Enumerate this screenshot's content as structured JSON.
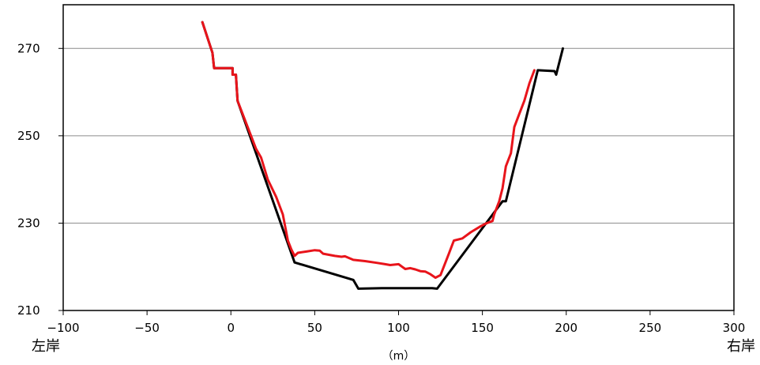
{
  "chart_data": {
    "type": "line",
    "xlim": [
      -100,
      300
    ],
    "ylim": [
      210,
      280
    ],
    "xticks": [
      -100,
      -50,
      0,
      50,
      100,
      150,
      200,
      250,
      300
    ],
    "yticks": [
      210,
      230,
      250,
      270
    ],
    "xtick_labels": [
      "−100",
      "−50",
      "0",
      "50",
      "100",
      "150",
      "200",
      "250",
      "300"
    ],
    "ytick_labels": [
      "210",
      "230",
      "250",
      "270"
    ],
    "xlabel": "（m）",
    "left_label": "左岸",
    "right_label": "右岸",
    "grid": "horizontal",
    "series": [
      {
        "color": "#000000",
        "points": [
          [
            -17,
            276
          ],
          [
            -11,
            269
          ],
          [
            -10,
            265.5
          ],
          [
            1,
            265.5
          ],
          [
            1,
            264
          ],
          [
            3,
            264
          ],
          [
            4,
            258
          ],
          [
            38,
            221
          ],
          [
            73,
            217
          ],
          [
            76,
            215
          ],
          [
            90,
            215.1
          ],
          [
            120,
            215.1
          ],
          [
            123,
            215
          ],
          [
            162,
            235
          ],
          [
            164,
            235
          ],
          [
            183,
            265
          ],
          [
            193,
            264.8
          ],
          [
            194,
            264
          ],
          [
            195,
            265.5
          ],
          [
            198,
            270
          ]
        ]
      },
      {
        "color": "#e8141b",
        "points": [
          [
            -17,
            276
          ],
          [
            -11,
            269
          ],
          [
            -10,
            265.5
          ],
          [
            1,
            265.5
          ],
          [
            1,
            264
          ],
          [
            3,
            264
          ],
          [
            4,
            258
          ],
          [
            15,
            247
          ],
          [
            18,
            245
          ],
          [
            22,
            240
          ],
          [
            27,
            236
          ],
          [
            31,
            232
          ],
          [
            34,
            226
          ],
          [
            36,
            224
          ],
          [
            38,
            222.5
          ],
          [
            40,
            223.2
          ],
          [
            45,
            223.5
          ],
          [
            50,
            223.8
          ],
          [
            53,
            223.7
          ],
          [
            55,
            223
          ],
          [
            62,
            222.5
          ],
          [
            66,
            222.3
          ],
          [
            68,
            222.4
          ],
          [
            73,
            221.6
          ],
          [
            80,
            221.3
          ],
          [
            87,
            220.9
          ],
          [
            92,
            220.6
          ],
          [
            95,
            220.4
          ],
          [
            100,
            220.6
          ],
          [
            104,
            219.5
          ],
          [
            107,
            219.7
          ],
          [
            110,
            219.4
          ],
          [
            113,
            219
          ],
          [
            116,
            218.9
          ],
          [
            119,
            218.3
          ],
          [
            122,
            217.5
          ],
          [
            125,
            218.1
          ],
          [
            130,
            223
          ],
          [
            133,
            226
          ],
          [
            138,
            226.5
          ],
          [
            143,
            227.9
          ],
          [
            149,
            229.3
          ],
          [
            152,
            229.9
          ],
          [
            156,
            230.5
          ],
          [
            157,
            232
          ],
          [
            160,
            235
          ],
          [
            162,
            238
          ],
          [
            164,
            243
          ],
          [
            167,
            246
          ],
          [
            169,
            252
          ],
          [
            172,
            255
          ],
          [
            175,
            258
          ],
          [
            178,
            262
          ],
          [
            181,
            265
          ]
        ]
      }
    ]
  }
}
